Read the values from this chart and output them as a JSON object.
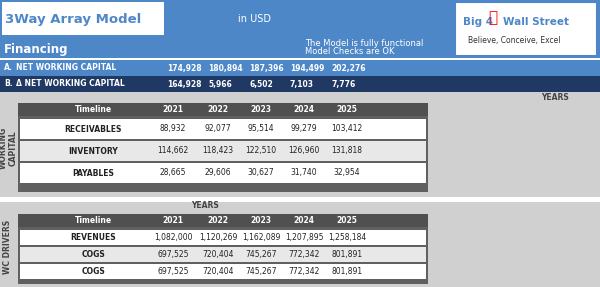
{
  "title": "3Way Array Model",
  "subtitle": "in USD",
  "section": "Financing",
  "logo_text1": "Big 4",
  "logo_text2": "Wall Street",
  "logo_sub": "Believe, Conceive, Excel",
  "model_status1": "The Model is fully functional",
  "model_status2": "Model Checks are OK",
  "header_bg": "#4D87C7",
  "dark_blue": "#1F3864",
  "med_blue": "#4D87C7",
  "light_gray": "#D0D0D0",
  "mid_gray": "#808080",
  "dark_gray": "#606060",
  "darker_gray": "#505050",
  "white": "#FFFFFF",
  "row_A_label": "A.",
  "row_A_name": "NET WORKING CAPITAL",
  "row_A_vals": [
    "174,928",
    "180,894",
    "187,396",
    "194,499",
    "202,276"
  ],
  "row_B_label": "B.",
  "row_B_name": "Δ NET WORKING CAPITAL",
  "row_B_vals": [
    "164,928",
    "5,966",
    "6,502",
    "7,103",
    "7,776"
  ],
  "years": [
    "2021",
    "2022",
    "2023",
    "2024",
    "2025"
  ],
  "wc_rows": [
    {
      "name": "RECEIVABLES",
      "vals": [
        "88,932",
        "92,077",
        "95,514",
        "99,279",
        "103,412"
      ]
    },
    {
      "name": "INVENTORY",
      "vals": [
        "114,662",
        "118,423",
        "122,510",
        "126,960",
        "131,818"
      ]
    },
    {
      "name": "PAYABLES",
      "vals": [
        "28,665",
        "29,606",
        "30,627",
        "31,740",
        "32,954"
      ]
    }
  ],
  "wcd_rows": [
    {
      "name": "REVENUES",
      "vals": [
        "1,082,000",
        "1,120,269",
        "1,162,089",
        "1,207,895",
        "1,258,184"
      ]
    },
    {
      "name": "COGS",
      "vals": [
        "697,525",
        "720,404",
        "745,267",
        "772,342",
        "801,891"
      ]
    },
    {
      "name": "COGS",
      "vals": [
        "697,525",
        "720,404",
        "745,267",
        "772,342",
        "801,891"
      ]
    }
  ],
  "side_label_wc": "WORKING\nCAPITAL",
  "side_label_wcd": "WC DRIVERS"
}
